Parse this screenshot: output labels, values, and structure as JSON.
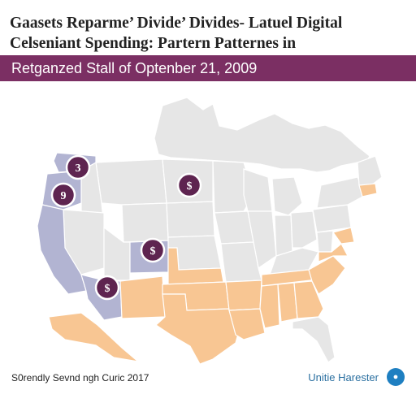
{
  "header": {
    "title_lines": [
      "Gaasets Reparme’ Divide’ Divides- Latuel Digital",
      "Celseniant Spending: Partern Patternes in"
    ],
    "subtitle": "Retganzed Stall of Optenber 21, 2009"
  },
  "map": {
    "colors": {
      "header_band": "#7b2f63",
      "neutral_state": "#e6e6e6",
      "west_group": "#b2b4d2",
      "south_group": "#f8c693",
      "marker": "#5e2450",
      "state_border": "#ffffff"
    },
    "markers": [
      {
        "label": "3",
        "region": "Washington"
      },
      {
        "label": "9",
        "region": "Oregon"
      },
      {
        "label": "$",
        "region": "North Dakota"
      },
      {
        "label": "$",
        "region": "Colorado"
      },
      {
        "label": "$",
        "region": "Arizona"
      }
    ]
  },
  "footer": {
    "left_text": "S0rendly Sevnd ngh Curic 2017",
    "right_text": "Unitie Harester",
    "logo_icon": "chart-logo-icon"
  }
}
